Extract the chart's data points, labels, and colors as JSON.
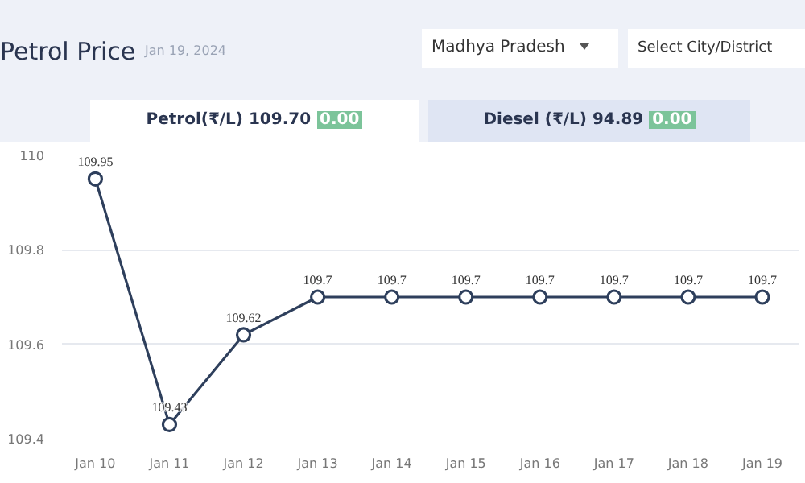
{
  "chart_data": {
    "type": "line",
    "title": "Petrol Price",
    "subtitle": "Jan 19, 2024",
    "annotations": [
      "Madhya Pradesh",
      "Select City/District",
      "Petrol(₹/L)",
      "109.70",
      "0.00",
      "Diesel (₹/L)",
      "94.89",
      "0.00"
    ],
    "categories": [
      "Jan 10",
      "Jan 11",
      "Jan 12",
      "Jan 13",
      "Jan 14",
      "Jan 15",
      "Jan 16",
      "Jan 17",
      "Jan 18",
      "Jan 19"
    ],
    "series": [
      {
        "color": "#2e3f5c",
        "values": [
          109.95,
          109.43,
          109.62,
          109.7,
          109.7,
          109.7,
          109.7,
          109.7,
          109.7,
          109.7
        ]
      }
    ],
    "ylim": [
      109.4,
      110.0
    ],
    "yticks": [
      109.4,
      109.6,
      109.8,
      {
        "value": 110.0,
        "label": "110"
      }
    ],
    "grid": "y",
    "marker": "circle",
    "line_style": "solid",
    "data_labels": true
  }
}
